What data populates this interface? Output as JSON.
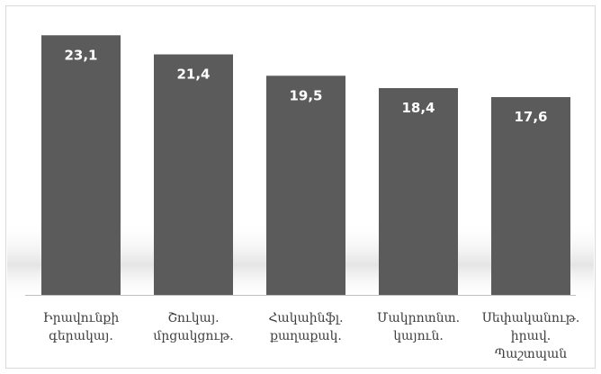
{
  "chart_data": {
    "type": "bar",
    "title": "",
    "xlabel": "",
    "ylabel": "",
    "ylim": [
      0,
      24
    ],
    "grid": false,
    "legend": "none",
    "categories": [
      [
        "Իրավունքի",
        "գերակայ."
      ],
      [
        "Շուկայ.",
        "մրցակցութ."
      ],
      [
        "Հակաինֆլ.",
        "քաղաքակ."
      ],
      [
        "Մակրոտնտ.",
        "կայուն."
      ],
      [
        "Սեփականութ.",
        "իրավ.",
        "Պաշտպան"
      ]
    ],
    "values": [
      23.1,
      21.4,
      19.5,
      18.4,
      17.6
    ],
    "value_labels": [
      "23,1",
      "21,4",
      "19,5",
      "18,4",
      "17,6"
    ],
    "colors": {
      "bar": "#5b5b5b",
      "bar_label": "#ffffff",
      "category_label": "#404040"
    }
  }
}
